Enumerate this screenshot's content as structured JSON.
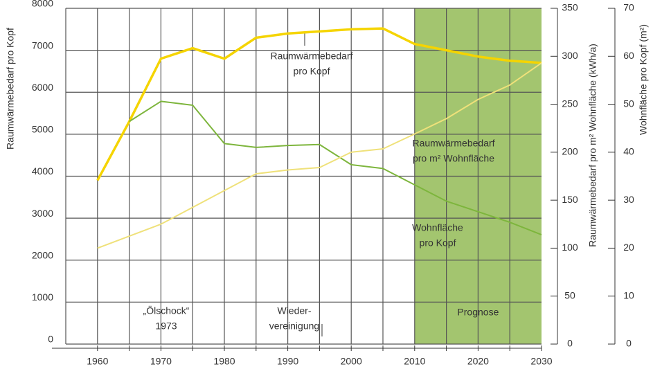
{
  "chart_data": {
    "type": "line",
    "xlim": [
      1955,
      2030
    ],
    "xticks": [
      1960,
      1970,
      1980,
      1990,
      2000,
      2010,
      2020,
      2030
    ],
    "ylim": [
      0,
      8000
    ],
    "yticks": [
      0,
      1000,
      2000,
      3000,
      4000,
      5000,
      6000,
      7000,
      8000
    ],
    "ylabel": "Raumwärmebedarf pro Kopf",
    "y2lim": [
      0,
      350
    ],
    "y2ticks": [
      0,
      50,
      100,
      150,
      200,
      250,
      300,
      350
    ],
    "y2label": "Raumwärmebedarf pro m² Wohnfläche (kWh/a)",
    "y3lim": [
      0,
      70
    ],
    "y3ticks": [
      0,
      10,
      20,
      30,
      40,
      50,
      60,
      70
    ],
    "y3label": "Wohnfläche pro Kopf (m²)",
    "grid": true,
    "shade": {
      "from": 2010,
      "to": 2030,
      "label": "Prognose",
      "color": "#a3c56f"
    },
    "series": [
      {
        "label": [
          "Raumwärmebedarf",
          "pro Kopf"
        ],
        "color": "#f5d400",
        "axis": "y",
        "x": [
          1960,
          1965,
          1970,
          1975,
          1980,
          1985,
          1990,
          1995,
          2000,
          2005,
          2010,
          2015,
          2020,
          2025,
          2030
        ],
        "values": [
          3900,
          5300,
          6800,
          7050,
          6800,
          7300,
          7400,
          7450,
          7500,
          7520,
          7150,
          7000,
          6850,
          6750,
          6700
        ]
      },
      {
        "label": [
          "Raumwärmebedarf",
          "pro m² Wohnfläche"
        ],
        "color": "#7db53c",
        "axis": "y2",
        "x": [
          1965,
          1970,
          1975,
          1980,
          1985,
          1990,
          1995,
          2000,
          2005,
          2010,
          2015,
          2020,
          2025,
          2030
        ],
        "values": [
          232,
          253,
          249,
          209,
          205,
          207,
          208,
          187,
          183,
          166,
          149,
          138,
          127,
          114
        ]
      },
      {
        "label": [
          "Wohnfläche",
          "pro Kopf"
        ],
        "color": "#efe17a",
        "axis": "y3",
        "x": [
          1960,
          1970,
          1980,
          1985,
          1990,
          1995,
          2000,
          2005,
          2010,
          2015,
          2020,
          2025,
          2030
        ],
        "values": [
          20,
          25,
          32,
          35.5,
          36.3,
          36.8,
          40,
          40.7,
          43.8,
          47,
          51,
          54,
          58.6
        ]
      }
    ],
    "annotations": [
      {
        "lines": [
          "„Ölschock“",
          "1973"
        ]
      },
      {
        "lines": [
          "Wieder-",
          "vereinigung"
        ]
      }
    ]
  }
}
